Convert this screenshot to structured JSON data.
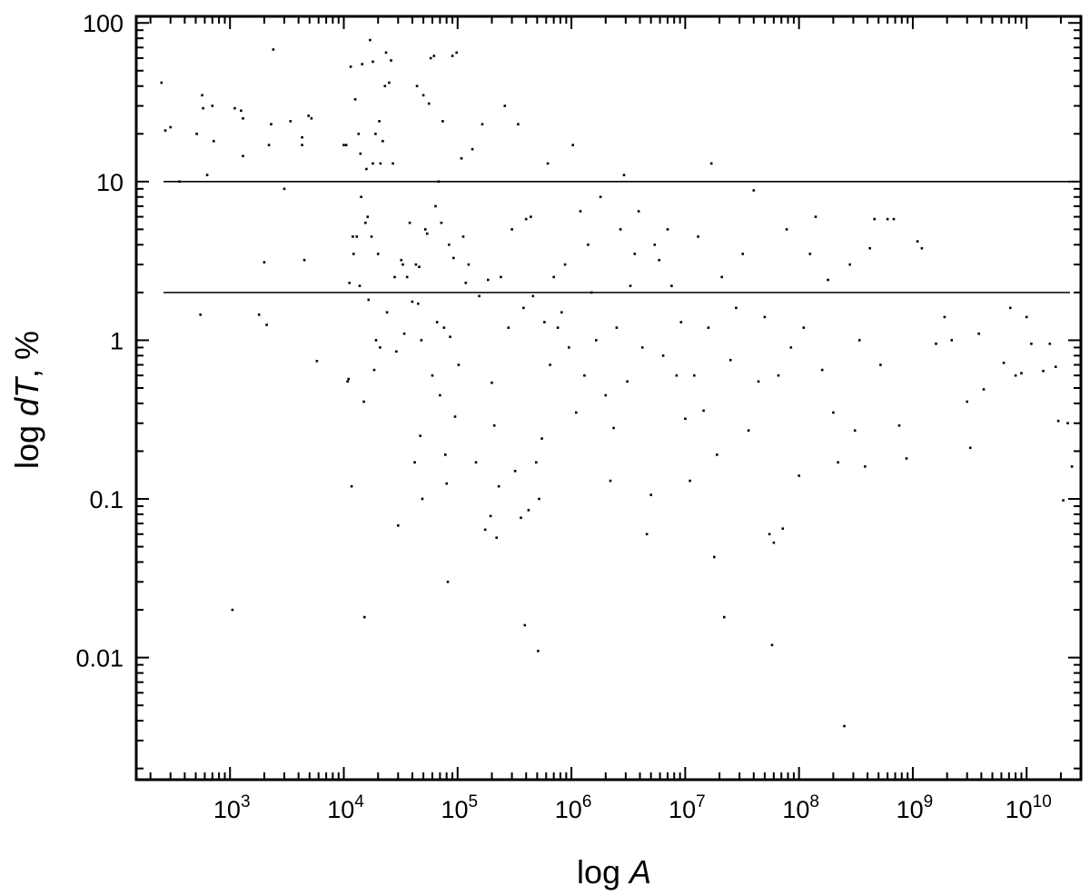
{
  "chart_data": {
    "type": "scatter",
    "title": "",
    "xlabel": {
      "prefix": "log ",
      "italic": "A",
      "suffix": ""
    },
    "ylabel": {
      "prefix": "log ",
      "italic": "dT",
      "suffix": ", %"
    },
    "x_scale": "log",
    "y_scale": "log",
    "xlim": [
      150,
      30000000000
    ],
    "ylim": [
      0.0017,
      110
    ],
    "x_ticks": [
      {
        "value": 1000,
        "base": "10",
        "exp": "3"
      },
      {
        "value": 10000,
        "base": "10",
        "exp": "4"
      },
      {
        "value": 100000,
        "base": "10",
        "exp": "5"
      },
      {
        "value": 1000000,
        "base": "10",
        "exp": "6"
      },
      {
        "value": 10000000,
        "base": "10",
        "exp": "7"
      },
      {
        "value": 100000000,
        "base": "10",
        "exp": "8"
      },
      {
        "value": 1000000000,
        "base": "10",
        "exp": "9"
      },
      {
        "value": 10000000000,
        "base": "10",
        "exp": "10"
      }
    ],
    "y_ticks": [
      {
        "value": 0.01,
        "label": "0.01"
      },
      {
        "value": 0.1,
        "label": "0.1"
      },
      {
        "value": 1,
        "label": "1"
      },
      {
        "value": 10,
        "label": "10"
      },
      {
        "value": 100,
        "label": "100"
      }
    ],
    "reference_lines": [
      {
        "y": 10
      },
      {
        "y": 2
      }
    ],
    "grid": false,
    "legend": "none",
    "marker_color": "#000000",
    "series": [
      {
        "points": [
          [
            250,
            42
          ],
          [
            270,
            21
          ],
          [
            300,
            22
          ],
          [
            360,
            10
          ],
          [
            510,
            20
          ],
          [
            550,
            1.45
          ],
          [
            570,
            35
          ],
          [
            580,
            29
          ],
          [
            630,
            11
          ],
          [
            700,
            30
          ],
          [
            720,
            18
          ],
          [
            1050,
            0.02
          ],
          [
            1100,
            29
          ],
          [
            1250,
            28
          ],
          [
            1300,
            14.5
          ],
          [
            1300,
            25
          ],
          [
            1800,
            1.45
          ],
          [
            2000,
            3.1
          ],
          [
            2100,
            1.25
          ],
          [
            2200,
            17
          ],
          [
            2300,
            23
          ],
          [
            2400,
            68
          ],
          [
            3000,
            9
          ],
          [
            3400,
            24
          ],
          [
            4300,
            17
          ],
          [
            4300,
            19
          ],
          [
            4500,
            3.2
          ],
          [
            4900,
            26
          ],
          [
            5200,
            25
          ],
          [
            5800,
            0.74
          ],
          [
            10000,
            17
          ],
          [
            10500,
            17
          ],
          [
            10800,
            0.55
          ],
          [
            11000,
            0.57
          ],
          [
            11200,
            2.3
          ],
          [
            11500,
            53
          ],
          [
            11700,
            0.12
          ],
          [
            12000,
            4.5
          ],
          [
            12200,
            3.5
          ],
          [
            12600,
            33
          ],
          [
            13000,
            4.5
          ],
          [
            13500,
            20
          ],
          [
            13800,
            2.2
          ],
          [
            14000,
            15
          ],
          [
            14200,
            8
          ],
          [
            14500,
            55
          ],
          [
            15000,
            0.41
          ],
          [
            15200,
            0.018
          ],
          [
            15500,
            5.5
          ],
          [
            15800,
            12
          ],
          [
            16200,
            6
          ],
          [
            16500,
            1.8
          ],
          [
            17000,
            78
          ],
          [
            17500,
            4.5
          ],
          [
            18000,
            57
          ],
          [
            18000,
            13
          ],
          [
            18500,
            0.65
          ],
          [
            19000,
            20
          ],
          [
            19200,
            1.0
          ],
          [
            20000,
            3.5
          ],
          [
            20500,
            24
          ],
          [
            20800,
            0.9
          ],
          [
            21000,
            13
          ],
          [
            22000,
            18
          ],
          [
            23000,
            40
          ],
          [
            23500,
            65
          ],
          [
            24000,
            1.5
          ],
          [
            25000,
            42
          ],
          [
            26000,
            58
          ],
          [
            27000,
            13
          ],
          [
            28000,
            2.5
          ],
          [
            29000,
            0.85
          ],
          [
            30000,
            0.068
          ],
          [
            32000,
            3.2
          ],
          [
            33000,
            3.0
          ],
          [
            34000,
            1.1
          ],
          [
            36000,
            2.5
          ],
          [
            38000,
            5.5
          ],
          [
            40000,
            1.75
          ],
          [
            42000,
            0.17
          ],
          [
            43000,
            3.0
          ],
          [
            44000,
            40
          ],
          [
            45000,
            1.7
          ],
          [
            46000,
            2.9
          ],
          [
            47000,
            0.25
          ],
          [
            48000,
            1.0
          ],
          [
            49000,
            0.1
          ],
          [
            50000,
            35
          ],
          [
            52000,
            5
          ],
          [
            54000,
            4.7
          ],
          [
            56000,
            31
          ],
          [
            58000,
            60
          ],
          [
            60000,
            0.6
          ],
          [
            62000,
            62
          ],
          [
            64000,
            7.0
          ],
          [
            66000,
            1.3
          ],
          [
            68000,
            10
          ],
          [
            70000,
            0.45
          ],
          [
            72000,
            5.5
          ],
          [
            74000,
            24
          ],
          [
            76000,
            1.2
          ],
          [
            78000,
            0.19
          ],
          [
            80000,
            0.125
          ],
          [
            82000,
            0.03
          ],
          [
            84000,
            4
          ],
          [
            86000,
            1.05
          ],
          [
            90000,
            62
          ],
          [
            92000,
            3.3
          ],
          [
            95000,
            0.33
          ],
          [
            98000,
            65
          ],
          [
            102000,
            0.7
          ],
          [
            108000,
            14
          ],
          [
            112000,
            4.5
          ],
          [
            118000,
            2.3
          ],
          [
            125000,
            3.0
          ],
          [
            135000,
            16
          ],
          [
            145000,
            0.17
          ],
          [
            155000,
            1.9
          ],
          [
            165000,
            23
          ],
          [
            175000,
            0.064
          ],
          [
            185000,
            2.4
          ],
          [
            195000,
            0.078
          ],
          [
            200000,
            0.54
          ],
          [
            210000,
            0.29
          ],
          [
            220000,
            0.057
          ],
          [
            230000,
            0.12
          ],
          [
            240000,
            2.5
          ],
          [
            260000,
            30
          ],
          [
            280000,
            1.2
          ],
          [
            300000,
            5.0
          ],
          [
            320000,
            0.15
          ],
          [
            340000,
            23
          ],
          [
            360000,
            0.076
          ],
          [
            380000,
            1.6
          ],
          [
            390000,
            0.016
          ],
          [
            400000,
            5.8
          ],
          [
            420000,
            0.085
          ],
          [
            440000,
            6
          ],
          [
            460000,
            1.9
          ],
          [
            490000,
            0.17
          ],
          [
            510000,
            0.011
          ],
          [
            520000,
            0.1
          ],
          [
            550000,
            0.24
          ],
          [
            580000,
            1.3
          ],
          [
            620000,
            13
          ],
          [
            650000,
            0.7
          ],
          [
            700000,
            2.5
          ],
          [
            760000,
            1.2
          ],
          [
            820000,
            1.5
          ],
          [
            880000,
            3
          ],
          [
            950000,
            0.9
          ],
          [
            1030000,
            17
          ],
          [
            1100000,
            0.35
          ],
          [
            1200000,
            6.5
          ],
          [
            1300000,
            0.6
          ],
          [
            1400000,
            4
          ],
          [
            1500000,
            2.0
          ],
          [
            1650000,
            1.0
          ],
          [
            1800000,
            8
          ],
          [
            2000000,
            0.45
          ],
          [
            2200000,
            0.13
          ],
          [
            2350000,
            0.28
          ],
          [
            2500000,
            1.2
          ],
          [
            2700000,
            5
          ],
          [
            2900000,
            11
          ],
          [
            3100000,
            0.55
          ],
          [
            3300000,
            2.2
          ],
          [
            3600000,
            3.5
          ],
          [
            3900000,
            6.5
          ],
          [
            4200000,
            0.9
          ],
          [
            4600000,
            0.06
          ],
          [
            5000000,
            0.106
          ],
          [
            5400000,
            4
          ],
          [
            5900000,
            3.2
          ],
          [
            6400000,
            0.8
          ],
          [
            7000000,
            5
          ],
          [
            7600000,
            2.2
          ],
          [
            8400000,
            0.6
          ],
          [
            9200000,
            1.3
          ],
          [
            10000000,
            0.32
          ],
          [
            11000000,
            0.13
          ],
          [
            12000000,
            0.6
          ],
          [
            13000000,
            4.5
          ],
          [
            14500000,
            0.36
          ],
          [
            16000000,
            1.2
          ],
          [
            17000000,
            13
          ],
          [
            18000000,
            0.043
          ],
          [
            19000000,
            0.19
          ],
          [
            21000000,
            2.5
          ],
          [
            22000000,
            0.018
          ],
          [
            25000000,
            0.75
          ],
          [
            28000000,
            1.6
          ],
          [
            32000000,
            3.5
          ],
          [
            36000000,
            0.27
          ],
          [
            40000000,
            8.8
          ],
          [
            44000000,
            0.55
          ],
          [
            50000000,
            1.4
          ],
          [
            55000000,
            0.06
          ],
          [
            58000000,
            0.012
          ],
          [
            60000000,
            0.053
          ],
          [
            66000000,
            0.6
          ],
          [
            72000000,
            0.065
          ],
          [
            78000000,
            5
          ],
          [
            85000000,
            0.9
          ],
          [
            100000000,
            0.14
          ],
          [
            110000000,
            1.2
          ],
          [
            125000000,
            3.5
          ],
          [
            140000000,
            6
          ],
          [
            160000000,
            0.65
          ],
          [
            180000000,
            2.4
          ],
          [
            200000000,
            0.35
          ],
          [
            220000000,
            0.17
          ],
          [
            250000000,
            0.0037
          ],
          [
            280000000,
            3.0
          ],
          [
            310000000,
            0.27
          ],
          [
            340000000,
            1.0
          ],
          [
            380000000,
            0.16
          ],
          [
            420000000,
            3.8
          ],
          [
            460000000,
            5.8
          ],
          [
            520000000,
            0.7
          ],
          [
            600000000,
            5.8
          ],
          [
            680000000,
            5.8
          ],
          [
            760000000,
            0.29
          ],
          [
            880000000,
            0.18
          ],
          [
            1100000000,
            4.2
          ],
          [
            1200000000,
            3.8
          ],
          [
            1600000000,
            0.95
          ],
          [
            1900000000,
            1.4
          ],
          [
            2200000000,
            1.0
          ],
          [
            3000000000,
            0.41
          ],
          [
            3200000000,
            0.21
          ],
          [
            3800000000,
            1.1
          ],
          [
            4200000000,
            0.49
          ],
          [
            6300000000,
            0.72
          ],
          [
            7200000000,
            1.6
          ],
          [
            8000000000,
            0.6
          ],
          [
            9000000000,
            0.62
          ],
          [
            10000000000,
            1.4
          ],
          [
            11000000000,
            0.95
          ],
          [
            14000000000,
            0.64
          ],
          [
            16000000000,
            0.95
          ],
          [
            18000000000,
            0.68
          ],
          [
            19000000000,
            0.31
          ],
          [
            21000000000,
            0.098
          ],
          [
            23000000000,
            0.3
          ],
          [
            25000000000,
            0.16
          ]
        ]
      }
    ]
  }
}
